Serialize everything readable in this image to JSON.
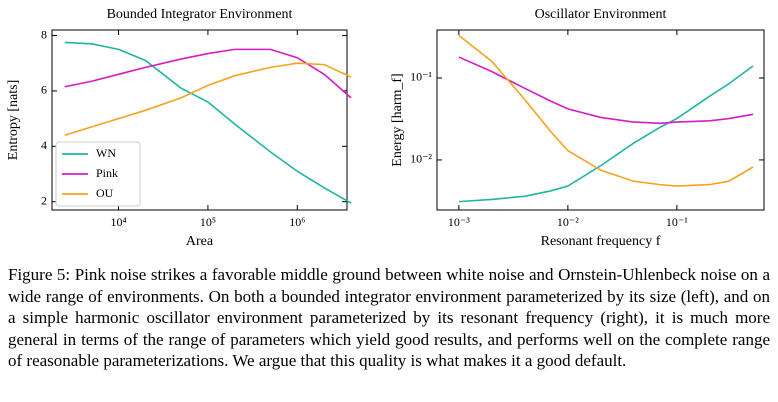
{
  "chart_data": [
    {
      "type": "line",
      "title": "Bounded Integrator Environment",
      "xlabel": "Area",
      "ylabel": "Entropy [nats]",
      "xscale": "log",
      "yscale": "linear",
      "legend": "lower left",
      "x": [
        2500,
        5000,
        10000,
        20000,
        50000,
        100000,
        200000,
        500000,
        1000000,
        2000000,
        4000000
      ],
      "series": [
        {
          "name": "WN",
          "color": "#1fb5a3",
          "values": [
            7.75,
            7.7,
            7.5,
            7.1,
            6.1,
            5.6,
            4.8,
            3.8,
            3.1,
            2.5,
            1.95
          ]
        },
        {
          "name": "Pink",
          "color": "#d41cc6",
          "values": [
            6.15,
            6.35,
            6.6,
            6.85,
            7.15,
            7.35,
            7.5,
            7.5,
            7.2,
            6.6,
            5.75
          ]
        },
        {
          "name": "OU",
          "color": "#f5a31f",
          "values": [
            4.4,
            4.7,
            5.0,
            5.3,
            5.75,
            6.2,
            6.55,
            6.85,
            7.0,
            6.95,
            6.5
          ]
        }
      ],
      "xlim": [
        1800,
        3600000
      ],
      "ylim": [
        1.7,
        8.2
      ],
      "xticks": [
        {
          "value": 10000,
          "label": "10⁴"
        },
        {
          "value": 100000,
          "label": "10⁵"
        },
        {
          "value": 1000000,
          "label": "10⁶"
        }
      ],
      "yticks": [
        2,
        4,
        6,
        8
      ]
    },
    {
      "type": "line",
      "title": "Oscillator Environment",
      "xlabel": "Resonant frequency f",
      "ylabel": "Energy [harm_f]",
      "xscale": "log",
      "yscale": "log",
      "x": [
        0.001,
        0.002,
        0.004,
        0.007,
        0.01,
        0.02,
        0.04,
        0.07,
        0.1,
        0.2,
        0.3,
        0.5
      ],
      "series": [
        {
          "name": "WN",
          "color": "#1fb5a3",
          "values": [
            0.0031,
            0.0033,
            0.0036,
            0.0042,
            0.0048,
            0.0085,
            0.016,
            0.025,
            0.032,
            0.06,
            0.085,
            0.14
          ]
        },
        {
          "name": "Pink",
          "color": "#d41cc6",
          "values": [
            0.18,
            0.12,
            0.075,
            0.052,
            0.042,
            0.033,
            0.029,
            0.028,
            0.029,
            0.03,
            0.032,
            0.036
          ]
        },
        {
          "name": "OU",
          "color": "#f5a31f",
          "values": [
            0.33,
            0.16,
            0.055,
            0.022,
            0.013,
            0.0075,
            0.0055,
            0.005,
            0.0048,
            0.005,
            0.0055,
            0.0082
          ]
        }
      ],
      "xlim": [
        0.00063,
        0.63
      ],
      "ylim": [
        0.00245,
        0.385
      ],
      "xticks": [
        {
          "value": 0.001,
          "label": "10⁻³"
        },
        {
          "value": 0.01,
          "label": "10⁻²"
        },
        {
          "value": 0.1,
          "label": "10⁻¹"
        }
      ],
      "yticks": [
        {
          "value": 0.01,
          "label": "10⁻²"
        },
        {
          "value": 0.1,
          "label": "10⁻¹"
        }
      ]
    }
  ],
  "caption": "Figure 5: Pink noise strikes a favorable middle ground between white noise and Ornstein-Uhlenbeck noise on a wide range of environments. On both a bounded integrator environment parameterized by its size (left), and on a simple harmonic oscillator environment parameterized by its resonant frequency (right), it is much more general in terms of the range of parameters which yield good results, and performs well on the complete range of reasonable parameterizations. We argue that this quality is what makes it a good default."
}
